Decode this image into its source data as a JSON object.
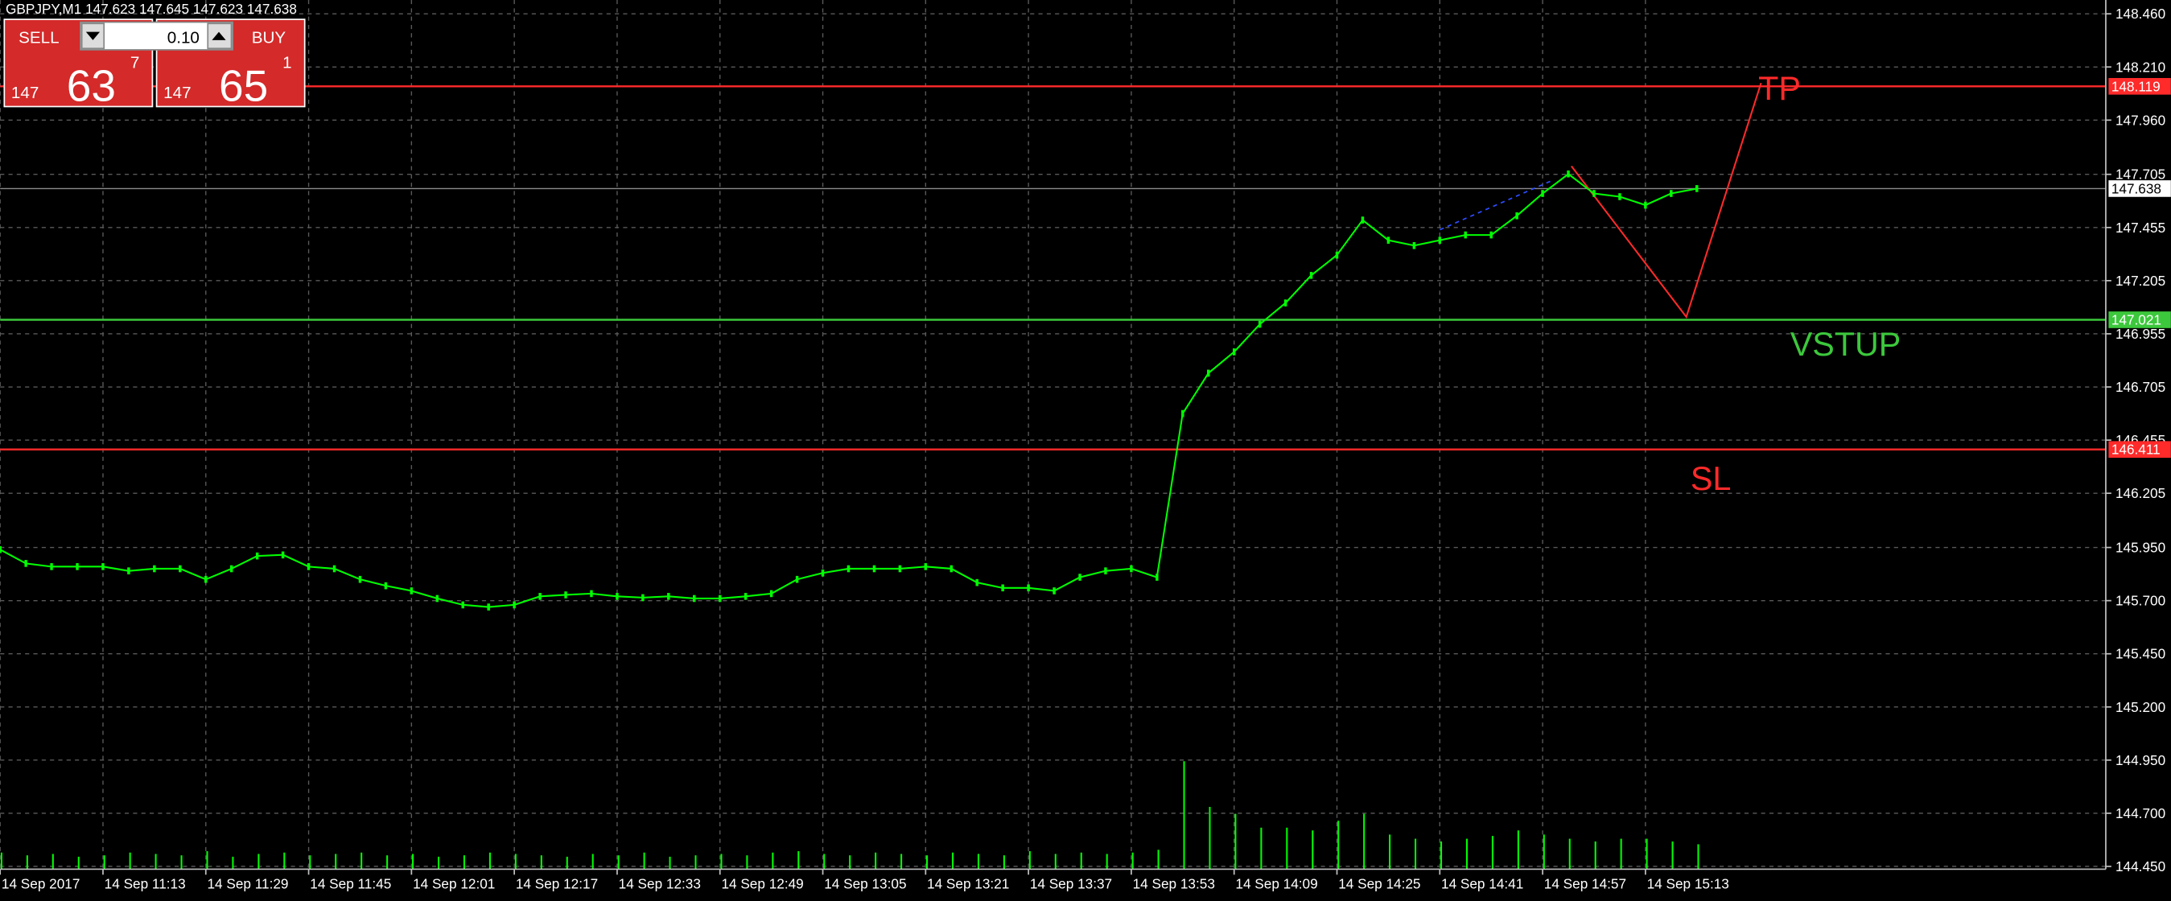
{
  "chart_data": {
    "type": "line",
    "title": "GBPJPY,M1  147.623 147.645 147.623 147.638",
    "color": "#00ff00",
    "categories": [
      "14 Sep 2017",
      null,
      null,
      null,
      "14 Sep 11:13",
      null,
      null,
      null,
      "14 Sep 11:29",
      null,
      null,
      null,
      "14 Sep 11:45",
      null,
      null,
      null,
      "14 Sep 12:01",
      null,
      null,
      null,
      "14 Sep 12:17",
      null,
      null,
      null,
      "14 Sep 12:33",
      null,
      null,
      null,
      "14 Sep 12:49",
      null,
      null,
      null,
      "14 Sep 13:05",
      null,
      null,
      null,
      "14 Sep 13:21",
      null,
      null,
      null,
      "14 Sep 13:37",
      null,
      null,
      null,
      "14 Sep 13:53",
      null,
      null,
      null,
      "14 Sep 14:09",
      null,
      null,
      null,
      "14 Sep 14:25",
      null,
      null,
      null,
      "14 Sep 14:41",
      null,
      null,
      null,
      "14 Sep 14:57",
      null,
      null,
      null,
      "14 Sep 15:13",
      null,
      null
    ],
    "values": [
      145.94,
      145.875,
      145.86,
      145.86,
      145.86,
      145.84,
      145.85,
      145.85,
      145.8,
      145.85,
      145.91,
      145.915,
      145.86,
      145.85,
      145.8,
      145.77,
      145.746,
      145.71,
      145.68,
      145.67,
      145.68,
      145.72,
      145.727,
      145.733,
      145.72,
      145.714,
      145.72,
      145.71,
      145.71,
      145.72,
      145.733,
      145.8,
      145.83,
      145.85,
      145.85,
      145.85,
      145.86,
      145.85,
      145.785,
      145.76,
      145.76,
      145.746,
      145.81,
      145.84,
      145.85,
      145.81,
      146.58,
      146.77,
      146.87,
      147.0,
      147.1,
      147.23,
      147.325,
      147.49,
      147.395,
      147.37,
      147.395,
      147.42,
      147.42,
      147.51,
      147.615,
      147.707,
      147.615,
      147.6,
      147.56,
      147.615,
      147.638
    ],
    "volumes": [
      12,
      10,
      11,
      9,
      10,
      12,
      11,
      10,
      13,
      9,
      11,
      12,
      10,
      11,
      12,
      10,
      11,
      9,
      10,
      12,
      11,
      10,
      9,
      11,
      10,
      12,
      9,
      10,
      11,
      10,
      12,
      13,
      11,
      10,
      12,
      11,
      10,
      12,
      11,
      10,
      13,
      11,
      12,
      11,
      12,
      14,
      78,
      45,
      40,
      30,
      30,
      28,
      35,
      40,
      25,
      22,
      20,
      22,
      24,
      28,
      25,
      22,
      20,
      22,
      22,
      20,
      18
    ],
    "volume_ylim": [
      0,
      100
    ],
    "ylim": [
      144.437,
      148.525
    ],
    "yticks": [
      {
        "value": 148.46,
        "label": "148.460"
      },
      {
        "value": 148.21,
        "label": "148.210"
      },
      {
        "value": 147.96,
        "label": "147.960"
      },
      147.705,
      147.455,
      147.205,
      146.955,
      146.705,
      146.455,
      146.205,
      {
        "value": 145.95,
        "label": "145.950"
      },
      {
        "value": 145.7,
        "label": "145.700"
      },
      {
        "value": 145.45,
        "label": "145.450"
      },
      {
        "value": 145.2,
        "label": "145.200"
      },
      {
        "value": 144.95,
        "label": "144.950"
      },
      {
        "value": 144.7,
        "label": "144.700"
      },
      {
        "value": 144.45,
        "label": "144.450"
      }
    ],
    "grid": true,
    "price_lines": [
      {
        "label": "TP",
        "value": 148.119,
        "color": "#ff2a2a"
      },
      {
        "label": "VSTUP",
        "value": 147.021,
        "color": "#3cc83c"
      },
      {
        "label": "SL",
        "value": 146.411,
        "color": "#ff2a2a"
      },
      {
        "value": 147.638,
        "color": "#8c8c8c"
      }
    ]
  },
  "trade_panel": {
    "sell_label": "SELL",
    "buy_label": "BUY",
    "lot": "0.10",
    "sell_price": {
      "big": "147",
      "main": "63",
      "small": "7"
    },
    "buy_price": {
      "big": "147",
      "main": "65",
      "small": "1"
    }
  }
}
